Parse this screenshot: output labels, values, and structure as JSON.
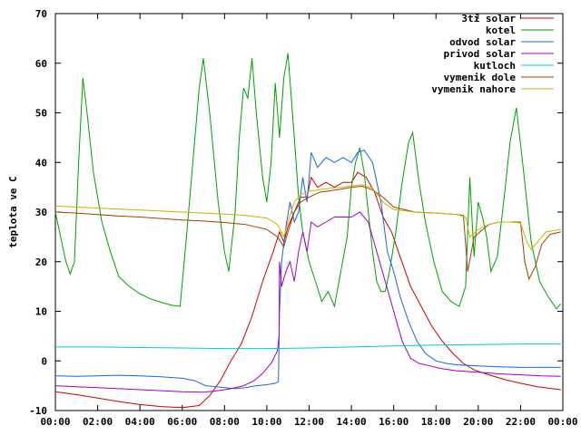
{
  "chart_data": {
    "type": "line",
    "title": "",
    "xlabel": "",
    "ylabel": "teplota ve C",
    "xlim": [
      0,
      24
    ],
    "ylim": [
      -10,
      70
    ],
    "x_ticks": [
      "00:00",
      "02:00",
      "04:00",
      "06:00",
      "08:00",
      "10:00",
      "12:00",
      "14:00",
      "16:00",
      "18:00",
      "20:00",
      "22:00",
      "00:00"
    ],
    "y_ticks": [
      -10,
      0,
      10,
      20,
      30,
      40,
      50,
      60,
      70
    ],
    "grid": false,
    "legend_position": "top-right",
    "series": [
      {
        "name": "3ti solar",
        "color": "#cc0000",
        "points": [
          [
            0,
            -6.2
          ],
          [
            1,
            -6.8
          ],
          [
            2,
            -7.5
          ],
          [
            3,
            -8.2
          ],
          [
            4,
            -8.8
          ],
          [
            5,
            -9.2
          ],
          [
            6,
            -9.4
          ],
          [
            6.8,
            -9.0
          ],
          [
            7.3,
            -7.0
          ],
          [
            7.8,
            -4.0
          ],
          [
            8.3,
            0
          ],
          [
            8.8,
            3.5
          ],
          [
            9.3,
            9
          ],
          [
            9.8,
            16
          ],
          [
            10.3,
            22
          ],
          [
            10.6,
            26
          ],
          [
            10.8,
            24
          ],
          [
            11,
            27
          ],
          [
            11.3,
            30
          ],
          [
            11.6,
            33
          ],
          [
            11.9,
            33
          ],
          [
            12.1,
            37
          ],
          [
            12.4,
            35
          ],
          [
            12.8,
            36
          ],
          [
            13.2,
            35
          ],
          [
            13.6,
            36
          ],
          [
            14,
            36
          ],
          [
            14.3,
            38
          ],
          [
            14.7,
            37
          ],
          [
            15.1,
            34
          ],
          [
            15.5,
            29
          ],
          [
            15.9,
            26
          ],
          [
            16.3,
            21
          ],
          [
            16.8,
            15
          ],
          [
            17.3,
            11
          ],
          [
            17.8,
            7
          ],
          [
            18.3,
            4
          ],
          [
            18.8,
            1.5
          ],
          [
            19.3,
            -0.5
          ],
          [
            19.8,
            -1.8
          ],
          [
            20.5,
            -2.8
          ],
          [
            21.3,
            -3.8
          ],
          [
            22,
            -4.5
          ],
          [
            22.8,
            -5.2
          ],
          [
            23.5,
            -5.6
          ],
          [
            23.9,
            -5.8
          ]
        ]
      },
      {
        "name": "kotel",
        "color": "#00a000",
        "points": [
          [
            0,
            30
          ],
          [
            0.5,
            20
          ],
          [
            0.7,
            17.5
          ],
          [
            0.9,
            20
          ],
          [
            1.1,
            40
          ],
          [
            1.3,
            57
          ],
          [
            1.5,
            50
          ],
          [
            1.8,
            38
          ],
          [
            2.2,
            28
          ],
          [
            2.6,
            22
          ],
          [
            3,
            17
          ],
          [
            3.5,
            15
          ],
          [
            4,
            13.5
          ],
          [
            4.5,
            12.5
          ],
          [
            5,
            11.8
          ],
          [
            5.5,
            11.2
          ],
          [
            5.9,
            11
          ],
          [
            6.2,
            25
          ],
          [
            6.5,
            40
          ],
          [
            6.8,
            55
          ],
          [
            7,
            61
          ],
          [
            7.3,
            50
          ],
          [
            7.7,
            32
          ],
          [
            8,
            22
          ],
          [
            8.2,
            18
          ],
          [
            8.5,
            30
          ],
          [
            8.7,
            45
          ],
          [
            8.9,
            55
          ],
          [
            9.1,
            53
          ],
          [
            9.3,
            61
          ],
          [
            9.5,
            50
          ],
          [
            9.8,
            37
          ],
          [
            10,
            32
          ],
          [
            10.2,
            40
          ],
          [
            10.4,
            56
          ],
          [
            10.6,
            45
          ],
          [
            10.8,
            57
          ],
          [
            11,
            62
          ],
          [
            11.3,
            45
          ],
          [
            11.5,
            33
          ],
          [
            11.7,
            26
          ],
          [
            12,
            20
          ],
          [
            12.3,
            16
          ],
          [
            12.6,
            12
          ],
          [
            12.9,
            14
          ],
          [
            13.2,
            11
          ],
          [
            13.5,
            18
          ],
          [
            13.8,
            25
          ],
          [
            14,
            35
          ],
          [
            14.2,
            40
          ],
          [
            14.4,
            43
          ],
          [
            14.6,
            38
          ],
          [
            14.8,
            30
          ],
          [
            15,
            22
          ],
          [
            15.2,
            16
          ],
          [
            15.4,
            14
          ],
          [
            15.6,
            14
          ],
          [
            15.8,
            18
          ],
          [
            16.1,
            26
          ],
          [
            16.4,
            36
          ],
          [
            16.7,
            44
          ],
          [
            16.9,
            46
          ],
          [
            17.2,
            36
          ],
          [
            17.5,
            28
          ],
          [
            17.9,
            20
          ],
          [
            18.3,
            14
          ],
          [
            18.7,
            12
          ],
          [
            19.1,
            11
          ],
          [
            19.4,
            15
          ],
          [
            19.6,
            37
          ],
          [
            19.8,
            21
          ],
          [
            20,
            32
          ],
          [
            20.2,
            29
          ],
          [
            20.4,
            25
          ],
          [
            20.6,
            18
          ],
          [
            20.9,
            21
          ],
          [
            21.2,
            32
          ],
          [
            21.5,
            44
          ],
          [
            21.8,
            51
          ],
          [
            22.1,
            40
          ],
          [
            22.5,
            24
          ],
          [
            22.9,
            16
          ],
          [
            23.3,
            13
          ],
          [
            23.7,
            10.5
          ],
          [
            23.9,
            11.5
          ]
        ]
      },
      {
        "name": "odvod solar",
        "color": "#1e64d6",
        "points": [
          [
            0,
            -3
          ],
          [
            1,
            -3.1
          ],
          [
            2,
            -3
          ],
          [
            3,
            -2.9
          ],
          [
            4,
            -3
          ],
          [
            5,
            -3.2
          ],
          [
            6,
            -3.5
          ],
          [
            6.6,
            -4
          ],
          [
            7.1,
            -5
          ],
          [
            7.6,
            -5.2
          ],
          [
            8,
            -5.4
          ],
          [
            8.5,
            -5.6
          ],
          [
            9,
            -5.4
          ],
          [
            9.5,
            -5
          ],
          [
            10,
            -4.8
          ],
          [
            10.4,
            -4.5
          ],
          [
            10.55,
            -4.2
          ],
          [
            10.6,
            10
          ],
          [
            10.7,
            20
          ],
          [
            10.9,
            27
          ],
          [
            11.1,
            32
          ],
          [
            11.3,
            28
          ],
          [
            11.5,
            30
          ],
          [
            11.7,
            37
          ],
          [
            11.9,
            32
          ],
          [
            12.1,
            42
          ],
          [
            12.4,
            39
          ],
          [
            12.8,
            41
          ],
          [
            13.2,
            40
          ],
          [
            13.6,
            41
          ],
          [
            14,
            40
          ],
          [
            14.3,
            42
          ],
          [
            14.6,
            42.5
          ],
          [
            15,
            40
          ],
          [
            15.4,
            32
          ],
          [
            15.7,
            22
          ],
          [
            16,
            18
          ],
          [
            16.3,
            13
          ],
          [
            16.7,
            8
          ],
          [
            17.1,
            4
          ],
          [
            17.5,
            1.5
          ],
          [
            18,
            0
          ],
          [
            18.5,
            -0.5
          ],
          [
            19,
            -0.8
          ],
          [
            20,
            -1
          ],
          [
            21,
            -1.2
          ],
          [
            22,
            -1.3
          ],
          [
            23,
            -1.3
          ],
          [
            23.9,
            -1.3
          ]
        ]
      },
      {
        "name": "privod solar",
        "color": "#a000c0",
        "points": [
          [
            0,
            -5
          ],
          [
            1,
            -5.2
          ],
          [
            2,
            -5.4
          ],
          [
            3,
            -5.6
          ],
          [
            4,
            -5.8
          ],
          [
            5,
            -6
          ],
          [
            6,
            -6.2
          ],
          [
            7,
            -6.3
          ],
          [
            7.7,
            -6
          ],
          [
            8.3,
            -5.6
          ],
          [
            8.9,
            -5
          ],
          [
            9.4,
            -4
          ],
          [
            9.8,
            -2.5
          ],
          [
            10.2,
            -0.5
          ],
          [
            10.5,
            2
          ],
          [
            10.58,
            5
          ],
          [
            10.6,
            20
          ],
          [
            10.7,
            15
          ],
          [
            10.9,
            18
          ],
          [
            11.1,
            20
          ],
          [
            11.3,
            16
          ],
          [
            11.5,
            22
          ],
          [
            11.7,
            26
          ],
          [
            11.9,
            22
          ],
          [
            12.1,
            28
          ],
          [
            12.4,
            27
          ],
          [
            12.8,
            28
          ],
          [
            13.2,
            29
          ],
          [
            13.6,
            29
          ],
          [
            14,
            29
          ],
          [
            14.4,
            30
          ],
          [
            14.8,
            28
          ],
          [
            15.2,
            22
          ],
          [
            15.6,
            16
          ],
          [
            16,
            10
          ],
          [
            16.4,
            4
          ],
          [
            16.8,
            0.5
          ],
          [
            17.2,
            -0.5
          ],
          [
            17.7,
            -1
          ],
          [
            18.2,
            -1.5
          ],
          [
            19,
            -2
          ],
          [
            20,
            -2.3
          ],
          [
            21,
            -2.6
          ],
          [
            22,
            -2.8
          ],
          [
            23,
            -3
          ],
          [
            23.9,
            -3.1
          ]
        ]
      },
      {
        "name": "kutloch",
        "color": "#00cccc",
        "points": [
          [
            0,
            2.8
          ],
          [
            2,
            2.8
          ],
          [
            4,
            2.7
          ],
          [
            6,
            2.6
          ],
          [
            8,
            2.5
          ],
          [
            10,
            2.5
          ],
          [
            12,
            2.6
          ],
          [
            14,
            2.8
          ],
          [
            16,
            3.0
          ],
          [
            18,
            3.2
          ],
          [
            20,
            3.3
          ],
          [
            22,
            3.4
          ],
          [
            23.9,
            3.4
          ]
        ]
      },
      {
        "name": "vymenik dole",
        "color": "#a04000",
        "points": [
          [
            0,
            30
          ],
          [
            1,
            29.8
          ],
          [
            2,
            29.5
          ],
          [
            3,
            29.2
          ],
          [
            4,
            29
          ],
          [
            5,
            28.7
          ],
          [
            6,
            28.4
          ],
          [
            7,
            28.2
          ],
          [
            8,
            27.9
          ],
          [
            9,
            27.5
          ],
          [
            10,
            26.5
          ],
          [
            10.5,
            25
          ],
          [
            10.8,
            23
          ],
          [
            11,
            26
          ],
          [
            11.3,
            30
          ],
          [
            11.6,
            32
          ],
          [
            12,
            33
          ],
          [
            12.5,
            34
          ],
          [
            13,
            34.3
          ],
          [
            13.5,
            34.6
          ],
          [
            14,
            35
          ],
          [
            14.5,
            35.2
          ],
          [
            15,
            34.5
          ],
          [
            15.5,
            33
          ],
          [
            16,
            31
          ],
          [
            17,
            30
          ],
          [
            18,
            29.8
          ],
          [
            19,
            29.5
          ],
          [
            19.3,
            29.3
          ],
          [
            19.5,
            18
          ],
          [
            19.8,
            25
          ],
          [
            20.5,
            27.5
          ],
          [
            21,
            28
          ],
          [
            21.5,
            28
          ],
          [
            22,
            28
          ],
          [
            22.2,
            20
          ],
          [
            22.4,
            16.5
          ],
          [
            22.7,
            19
          ],
          [
            23,
            23.5
          ],
          [
            23.4,
            25.5
          ],
          [
            23.9,
            26
          ]
        ]
      },
      {
        "name": "vymenik nahore",
        "color": "#c8b400",
        "points": [
          [
            0,
            31.2
          ],
          [
            1,
            31
          ],
          [
            2,
            30.8
          ],
          [
            3,
            30.6
          ],
          [
            4,
            30.4
          ],
          [
            5,
            30.2
          ],
          [
            6,
            30
          ],
          [
            7,
            29.8
          ],
          [
            8,
            29.6
          ],
          [
            9,
            29.3
          ],
          [
            10,
            28.8
          ],
          [
            10.5,
            27.5
          ],
          [
            10.8,
            25
          ],
          [
            11,
            28
          ],
          [
            11.3,
            32
          ],
          [
            11.6,
            33.5
          ],
          [
            12,
            34.2
          ],
          [
            12.5,
            34.5
          ],
          [
            13,
            34.8
          ],
          [
            13.5,
            35
          ],
          [
            14,
            35.3
          ],
          [
            14.5,
            35.5
          ],
          [
            15,
            34.8
          ],
          [
            15.5,
            32
          ],
          [
            16,
            30.5
          ],
          [
            17,
            30
          ],
          [
            18,
            29.8
          ],
          [
            19,
            29.5
          ],
          [
            19.4,
            29
          ],
          [
            19.6,
            25
          ],
          [
            20,
            26.5
          ],
          [
            20.5,
            27.5
          ],
          [
            21,
            28
          ],
          [
            21.5,
            28
          ],
          [
            22,
            27.8
          ],
          [
            22.3,
            24
          ],
          [
            22.5,
            22.5
          ],
          [
            22.8,
            24
          ],
          [
            23.2,
            26
          ],
          [
            23.9,
            26.5
          ]
        ]
      }
    ]
  }
}
